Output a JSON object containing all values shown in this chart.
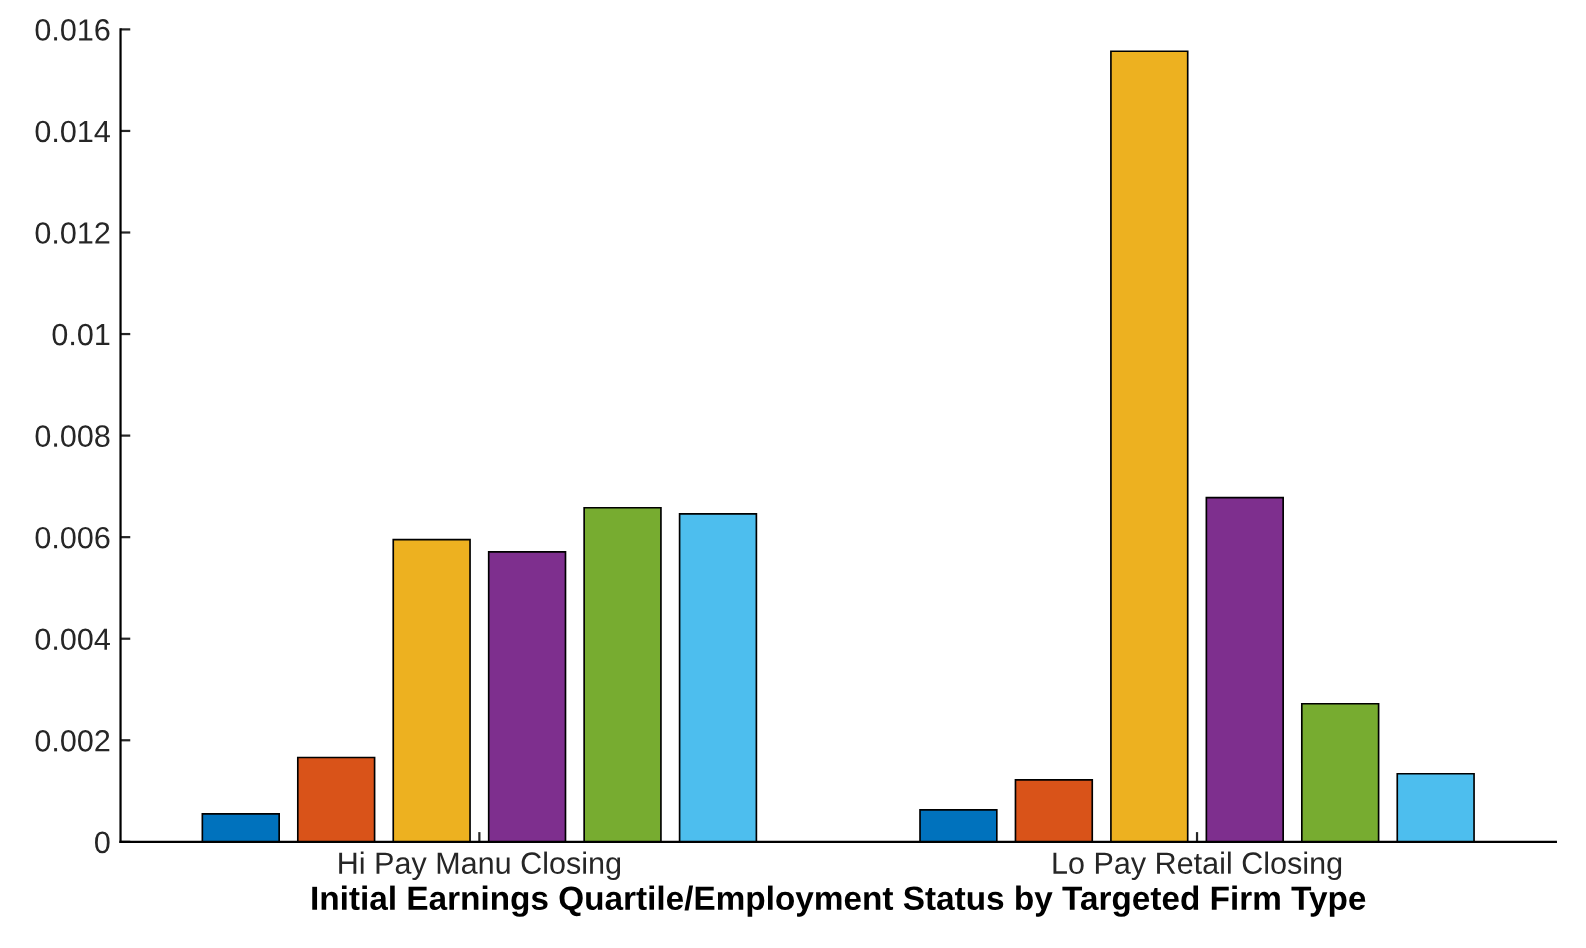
{
  "chart_data": {
    "type": "bar",
    "xlabel": "Initial Earnings Quartile/Employment Status by Targeted Firm Type",
    "categories": [
      "Hi Pay Manu Closing",
      "Lo Pay Retail Closing"
    ],
    "series": [
      {
        "color": "#0072bd",
        "values": [
          0.00055,
          0.00063
        ]
      },
      {
        "color": "#d95319",
        "values": [
          0.00166,
          0.00122
        ]
      },
      {
        "color": "#edb120",
        "values": [
          0.00595,
          0.01557
        ]
      },
      {
        "color": "#7e2f8e",
        "values": [
          0.00571,
          0.00678
        ]
      },
      {
        "color": "#77ac30",
        "values": [
          0.00658,
          0.00272
        ]
      },
      {
        "color": "#4dbeee",
        "values": [
          0.00646,
          0.00134
        ]
      }
    ],
    "ylim": [
      0,
      0.016
    ],
    "yticks": [
      0,
      0.002,
      0.004,
      0.006,
      0.008,
      0.01,
      0.012,
      0.014,
      0.016
    ],
    "grid": false,
    "legend": false
  }
}
